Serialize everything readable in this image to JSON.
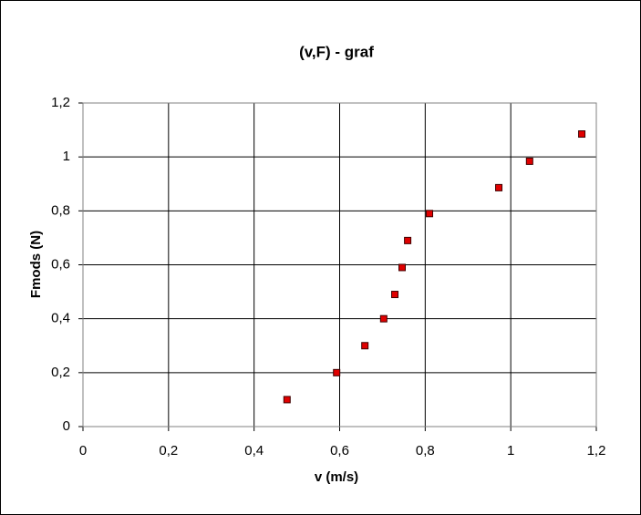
{
  "chart_data": {
    "type": "scatter",
    "title": "(v,F) - graf",
    "x_label": "v (m/s)",
    "y_label": "Fmods (N)",
    "series": [
      {
        "color": "#e00000",
        "x": [
          0.477,
          0.593,
          0.659,
          0.703,
          0.729,
          0.746,
          0.759,
          0.81,
          0.972,
          1.044,
          1.166
        ],
        "values": [
          0.1,
          0.2,
          0.3,
          0.4,
          0.49,
          0.59,
          0.69,
          0.79,
          0.886,
          0.984,
          1.085
        ]
      }
    ],
    "xlim": [
      0,
      1.2
    ],
    "xticks": [
      0,
      {
        "value": 0.2,
        "label": "0,2"
      },
      {
        "value": 0.4,
        "label": "0,4"
      },
      {
        "value": 0.6,
        "label": "0,6"
      },
      {
        "value": 0.8,
        "label": "0,8"
      },
      1,
      {
        "value": 1.2,
        "label": "1,2"
      }
    ],
    "ylim": [
      0,
      1.2
    ],
    "yticks": [
      0,
      {
        "value": 0.2,
        "label": "0,2"
      },
      {
        "value": 0.4,
        "label": "0,4"
      },
      {
        "value": 0.6,
        "label": "0,6"
      },
      {
        "value": 0.8,
        "label": "0,8"
      },
      1,
      {
        "value": 1.2,
        "label": "1,2"
      }
    ],
    "grid": true
  }
}
